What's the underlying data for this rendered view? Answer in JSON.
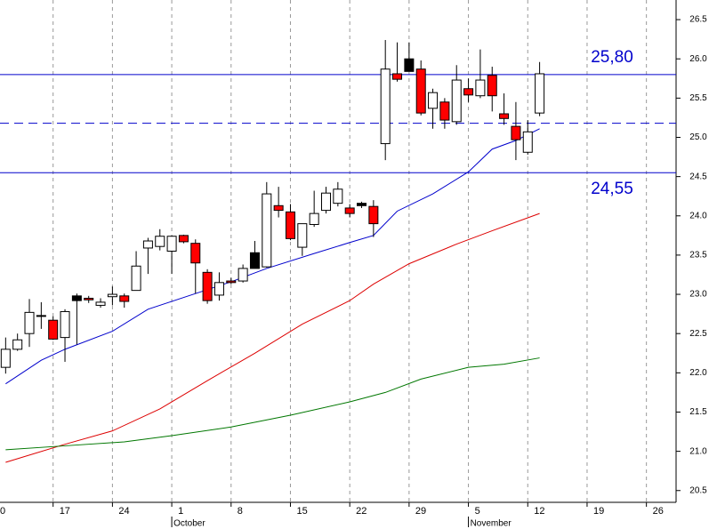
{
  "chart_data": {
    "type": "candlestick",
    "x": [
      0,
      1,
      2,
      3,
      4,
      5,
      6,
      7,
      8,
      9,
      10,
      11,
      12,
      13,
      14,
      15,
      16,
      17,
      18,
      19,
      20,
      21,
      22,
      23,
      24,
      25,
      26,
      27,
      28,
      29,
      30,
      31,
      32,
      33,
      34,
      35,
      36,
      37,
      38,
      39,
      40,
      41,
      42,
      43,
      44,
      45
    ],
    "open": [
      22.07,
      22.3,
      22.5,
      22.73,
      22.67,
      22.45,
      22.98,
      22.95,
      22.86,
      22.97,
      22.98,
      23.05,
      23.59,
      23.61,
      23.55,
      23.75,
      23.65,
      23.28,
      22.99,
      23.17,
      23.17,
      23.53,
      23.35,
      24.13,
      24.05,
      23.6,
      23.89,
      24.07,
      24.16,
      24.1,
      24.16,
      24.12,
      24.92,
      25.81,
      26.0,
      25.87,
      25.37,
      25.45,
      25.2,
      25.62,
      25.53,
      25.79,
      25.3,
      25.14,
      24.81,
      25.31
    ],
    "high": [
      22.45,
      22.5,
      22.94,
      22.9,
      22.72,
      22.81,
      23.01,
      22.98,
      22.95,
      23.1,
      23.01,
      23.55,
      23.72,
      23.83,
      23.75,
      23.76,
      23.7,
      23.32,
      23.28,
      23.21,
      23.38,
      23.68,
      24.43,
      24.37,
      24.15,
      23.9,
      24.32,
      24.37,
      24.43,
      24.15,
      24.18,
      24.2,
      26.24,
      26.21,
      26.21,
      25.98,
      25.62,
      25.5,
      25.92,
      25.75,
      26.12,
      25.9,
      25.56,
      25.45,
      25.22,
      25.96
    ],
    "low": [
      21.99,
      22.28,
      22.33,
      22.56,
      22.42,
      22.14,
      22.36,
      22.89,
      22.83,
      22.86,
      22.83,
      23.05,
      23.26,
      23.56,
      23.26,
      23.65,
      23.01,
      22.88,
      22.92,
      23.13,
      23.15,
      23.33,
      23.34,
      23.98,
      23.69,
      23.49,
      23.86,
      24.03,
      24.12,
      23.98,
      24.1,
      23.73,
      24.71,
      25.71,
      25.84,
      25.28,
      25.11,
      25.11,
      25.16,
      25.45,
      25.5,
      25.33,
      25.16,
      24.71,
      24.78,
      25.27
    ],
    "close": [
      22.3,
      22.42,
      22.77,
      22.72,
      22.43,
      22.78,
      22.92,
      22.93,
      22.9,
      23.0,
      22.91,
      23.36,
      23.68,
      23.74,
      23.74,
      23.67,
      23.4,
      22.92,
      23.15,
      23.15,
      23.33,
      23.33,
      24.28,
      24.07,
      23.71,
      23.9,
      24.03,
      24.29,
      24.34,
      24.03,
      24.13,
      23.9,
      25.87,
      25.74,
      25.84,
      25.31,
      25.57,
      25.22,
      25.73,
      25.54,
      25.73,
      25.53,
      25.24,
      24.97,
      25.07,
      25.81
    ],
    "colors": [
      "#ffffff",
      "#ffffff",
      "#ffffff",
      "#ff0000",
      "#ff0000",
      "#ffffff",
      "#000000",
      "#ff0000",
      "#ffffff",
      "#ffffff",
      "#ff0000",
      "#ffffff",
      "#ffffff",
      "#ffffff",
      "#ffffff",
      "#ff0000",
      "#ff0000",
      "#ff0000",
      "#ffffff",
      "#ff0000",
      "#ffffff",
      "#000000",
      "#ffffff",
      "#ff0000",
      "#ff0000",
      "#ffffff",
      "#ffffff",
      "#ffffff",
      "#ffffff",
      "#ff0000",
      "#000000",
      "#ff0000",
      "#ffffff",
      "#ff0000",
      "#000000",
      "#ff0000",
      "#ffffff",
      "#ff0000",
      "#ffffff",
      "#ff0000",
      "#ffffff",
      "#ff0000",
      "#ff0000",
      "#ff0000",
      "#ffffff",
      "#ffffff"
    ],
    "lines": [
      {
        "color": "#0000cc",
        "x": [
          0,
          3,
          5,
          9,
          12,
          16,
          19,
          22,
          26,
          29,
          31,
          33,
          36,
          39,
          41,
          43,
          45
        ],
        "values": [
          21.86,
          22.16,
          22.3,
          22.53,
          22.81,
          23.01,
          23.16,
          23.33,
          23.52,
          23.66,
          23.75,
          24.06,
          24.28,
          24.56,
          24.85,
          24.96,
          25.11
        ]
      },
      {
        "color": "#dd0000",
        "x": [
          0,
          5,
          9,
          13,
          17,
          21,
          25,
          29,
          31,
          34,
          38,
          41,
          45
        ],
        "values": [
          20.86,
          21.09,
          21.26,
          21.54,
          21.9,
          22.25,
          22.62,
          22.92,
          23.13,
          23.39,
          23.64,
          23.81,
          24.03
        ]
      },
      {
        "color": "#007700",
        "x": [
          0,
          5,
          10,
          14,
          19,
          24,
          29,
          32,
          35,
          39,
          42,
          45
        ],
        "values": [
          21.02,
          21.07,
          21.12,
          21.2,
          21.31,
          21.46,
          21.63,
          21.75,
          21.92,
          22.07,
          22.11,
          22.19
        ]
      }
    ],
    "hlines": [
      {
        "value": 25.8,
        "value_label": "25,80",
        "color": "#0000cc",
        "dashed": false
      },
      {
        "value": 25.18,
        "color": "#0000cc",
        "dashed": true
      },
      {
        "value": 24.55,
        "value_label": "24,55",
        "color": "#0000cc",
        "dashed": false
      }
    ],
    "xlim": [
      -1,
      56.5
    ],
    "xticks": [
      {
        "value": -1,
        "label": "0"
      },
      {
        "value": 4,
        "label": "17"
      },
      {
        "value": 9,
        "label": "24"
      },
      {
        "value": 14,
        "label": "1"
      },
      {
        "value": 19,
        "label": "8"
      },
      {
        "value": 24,
        "label": "15"
      },
      {
        "value": 29,
        "label": "22"
      },
      {
        "value": 34,
        "label": "29"
      },
      {
        "value": 39,
        "label": "5"
      },
      {
        "value": 44,
        "label": "12"
      },
      {
        "value": 49,
        "label": "19"
      },
      {
        "value": 54,
        "label": "26"
      }
    ],
    "month_labels": [
      {
        "value": 14,
        "label": "October"
      },
      {
        "value": 39,
        "label": "November"
      }
    ],
    "ylim": [
      20.35,
      26.75
    ],
    "yticks": [
      20.5,
      {
        "value": 21,
        "label": "21.0"
      },
      21.5,
      {
        "value": 22,
        "label": "22.0"
      },
      22.5,
      {
        "value": 23,
        "label": "23.0"
      },
      23.5,
      {
        "value": 24,
        "label": "24.0"
      },
      24.5,
      {
        "value": 25,
        "label": "25.0"
      },
      25.5,
      {
        "value": 26,
        "label": "26.0"
      },
      26.5
    ],
    "grid": true
  }
}
